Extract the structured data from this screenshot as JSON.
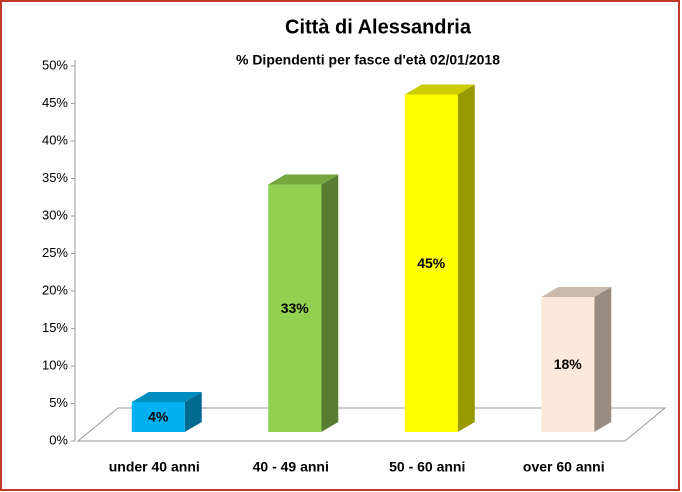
{
  "chart_data": {
    "type": "bar3d",
    "title": "Città di Alessandria",
    "subtitle": "% Dipendenti per fasce d'età 02/01/2018",
    "categories": [
      "under 40 anni",
      "40 - 49 anni",
      "50 - 60 anni",
      "over 60 anni"
    ],
    "values": [
      4,
      33,
      45,
      18
    ],
    "value_labels": [
      "4%",
      "33%",
      "45%",
      "18%"
    ],
    "colors": [
      "#00b0f0",
      "#92d050",
      "#ffff00",
      "#fde9d9"
    ],
    "ylim": [
      0,
      50
    ],
    "yticks": [
      {
        "value": 0,
        "label": "0%"
      },
      {
        "value": 5,
        "label": "5%"
      },
      {
        "value": 10,
        "label": "10%"
      },
      {
        "value": 15,
        "label": "15%"
      },
      {
        "value": 20,
        "label": "20%"
      },
      {
        "value": 25,
        "label": "25%"
      },
      {
        "value": 30,
        "label": "30%"
      },
      {
        "value": 35,
        "label": "35%"
      },
      {
        "value": 40,
        "label": "40%"
      },
      {
        "value": 45,
        "label": "45%"
      },
      {
        "value": 50,
        "label": "50%"
      }
    ]
  }
}
